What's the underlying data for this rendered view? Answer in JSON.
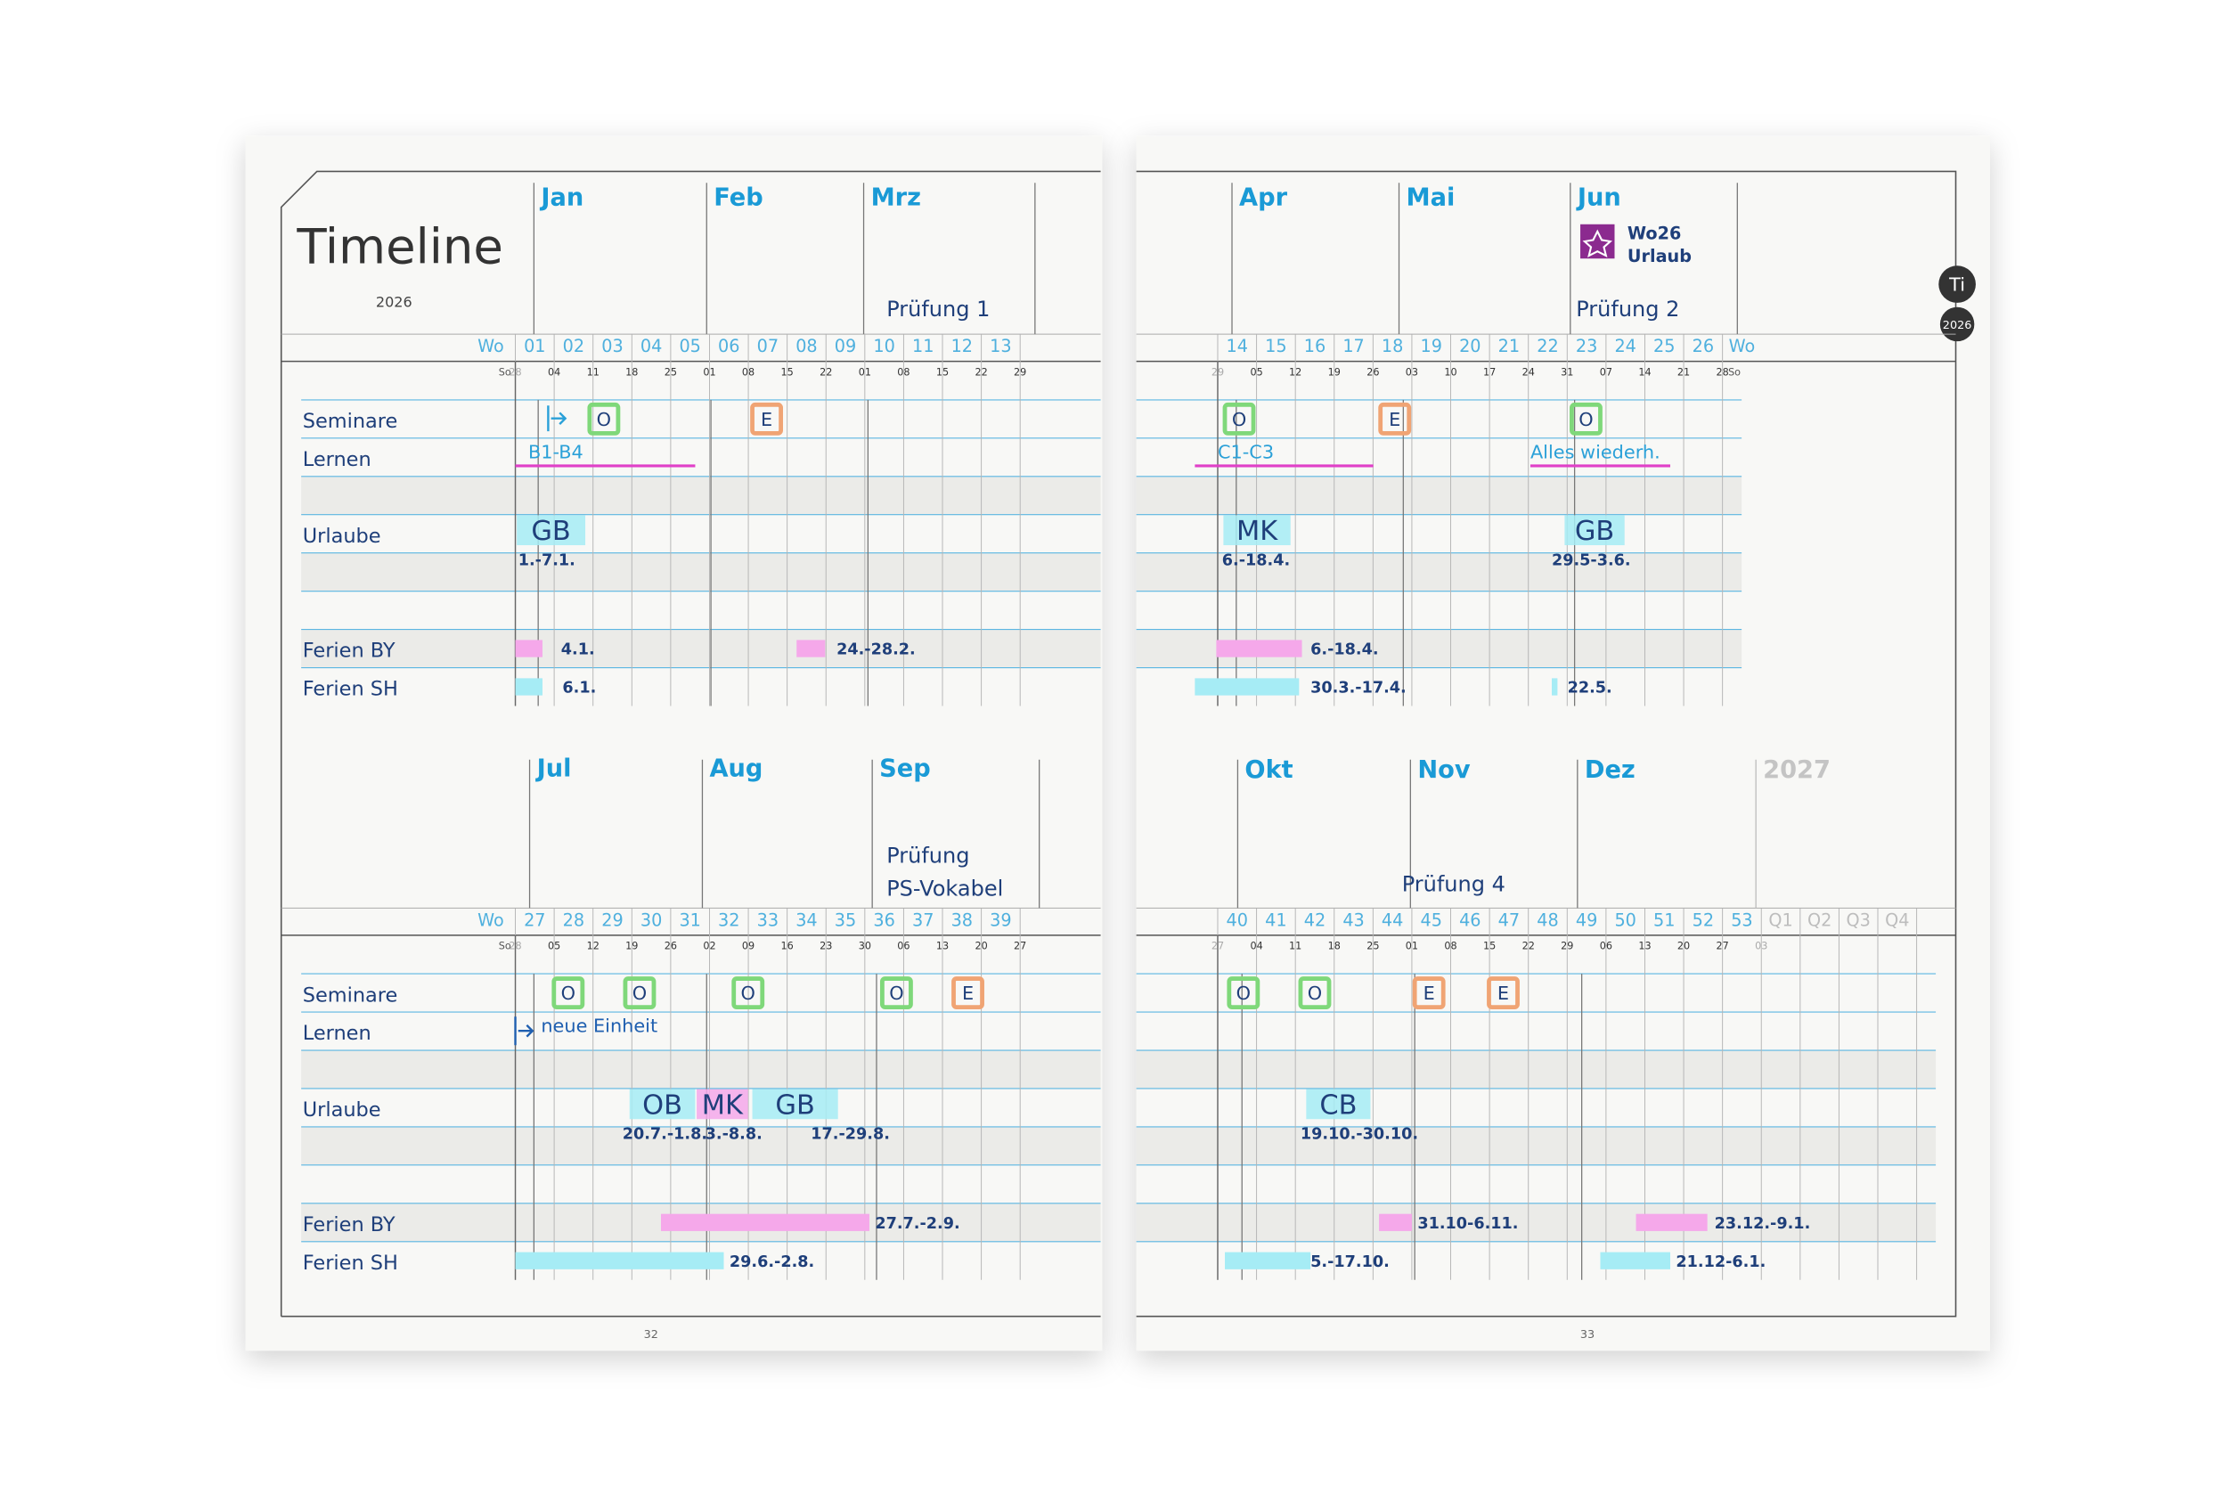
{
  "spread": {
    "title": "Timeline",
    "year": "2026",
    "tab": {
      "label": "Ti",
      "year": "2026"
    },
    "week_label": "Wo",
    "day_label": "So",
    "rows": [
      "Seminare",
      "Lernen",
      "Urlaube",
      "Ferien BY",
      "Ferien SH"
    ],
    "page_numbers": [
      "32",
      "33"
    ],
    "sections": [
      {
        "months": [
          "Jan",
          "Feb",
          "Mrz"
        ],
        "exam": [
          "Prüfung 1"
        ],
        "weeks": [
          "01",
          "02",
          "03",
          "04",
          "05",
          "06",
          "07",
          "08",
          "09",
          "10",
          "11",
          "12",
          "13"
        ],
        "days": [
          "28",
          "04",
          "11",
          "18",
          "25",
          "01",
          "08",
          "15",
          "22",
          "01",
          "08",
          "15",
          "22",
          "29"
        ],
        "seminars": [
          "O",
          "E"
        ],
        "learning": [
          "B1-B4"
        ],
        "vacations": [
          {
            "label": "GB",
            "dates": "1.-7.1."
          }
        ],
        "holidays_by": [
          "4.1.",
          "24.-28.2."
        ],
        "holidays_sh": [
          "6.1."
        ]
      },
      {
        "months": [
          "Apr",
          "Mai",
          "Jun"
        ],
        "exam": [
          "Prüfung 2"
        ],
        "note": [
          "Wo26",
          "Urlaub"
        ],
        "weeks": [
          "14",
          "15",
          "16",
          "17",
          "18",
          "19",
          "20",
          "21",
          "22",
          "23",
          "24",
          "25",
          "26"
        ],
        "days": [
          "29",
          "05",
          "12",
          "19",
          "26",
          "03",
          "10",
          "17",
          "24",
          "31",
          "07",
          "14",
          "21",
          "28"
        ],
        "seminars": [
          "O",
          "E",
          "O"
        ],
        "learning": [
          "C1-C3",
          "Alles wiederh."
        ],
        "vacations": [
          {
            "label": "MK",
            "dates": "6.-18.4."
          },
          {
            "label": "GB",
            "dates": "29.5-3.6."
          }
        ],
        "holidays_by": [
          "6.-18.4."
        ],
        "holidays_sh": [
          "30.3.-17.4.",
          "22.5."
        ]
      },
      {
        "months": [
          "Jul",
          "Aug",
          "Sep"
        ],
        "exam": [
          "Prüfung",
          "PS-Vokabel"
        ],
        "weeks": [
          "27",
          "28",
          "29",
          "30",
          "31",
          "32",
          "33",
          "34",
          "35",
          "36",
          "37",
          "38",
          "39"
        ],
        "days": [
          "28",
          "05",
          "12",
          "19",
          "26",
          "02",
          "09",
          "16",
          "23",
          "30",
          "06",
          "13",
          "20",
          "27"
        ],
        "seminars": [
          "O",
          "O",
          "O",
          "O",
          "E"
        ],
        "learning": [
          "neue Einheit"
        ],
        "vacations": [
          {
            "label": "OB",
            "dates": "20.7.-1.8."
          },
          {
            "label": "MK",
            "dates": "3.-8.8."
          },
          {
            "label": "GB",
            "dates": "17.-29.8."
          }
        ],
        "holidays_by": [
          "27.7.-2.9."
        ],
        "holidays_sh": [
          "29.6.-2.8."
        ]
      },
      {
        "months": [
          "Okt",
          "Nov",
          "Dez"
        ],
        "next_year": "2027",
        "exam": [
          "Prüfung 4"
        ],
        "weeks": [
          "40",
          "41",
          "42",
          "43",
          "44",
          "45",
          "46",
          "47",
          "48",
          "49",
          "50",
          "51",
          "52",
          "53"
        ],
        "quarters": [
          "Q1",
          "Q2",
          "Q3",
          "Q4"
        ],
        "days": [
          "27",
          "04",
          "11",
          "18",
          "25",
          "01",
          "08",
          "15",
          "22",
          "29",
          "06",
          "13",
          "20",
          "27",
          "03"
        ],
        "seminars": [
          "O",
          "O",
          "E",
          "E"
        ],
        "learning": [],
        "vacations": [
          {
            "label": "CB",
            "dates": "19.10.-30.10."
          }
        ],
        "holidays_by": [
          "31.10-6.11.",
          "23.12.-9.1."
        ],
        "holidays_sh": [
          "5.-17.10.",
          "21.12-6.1."
        ]
      }
    ]
  }
}
